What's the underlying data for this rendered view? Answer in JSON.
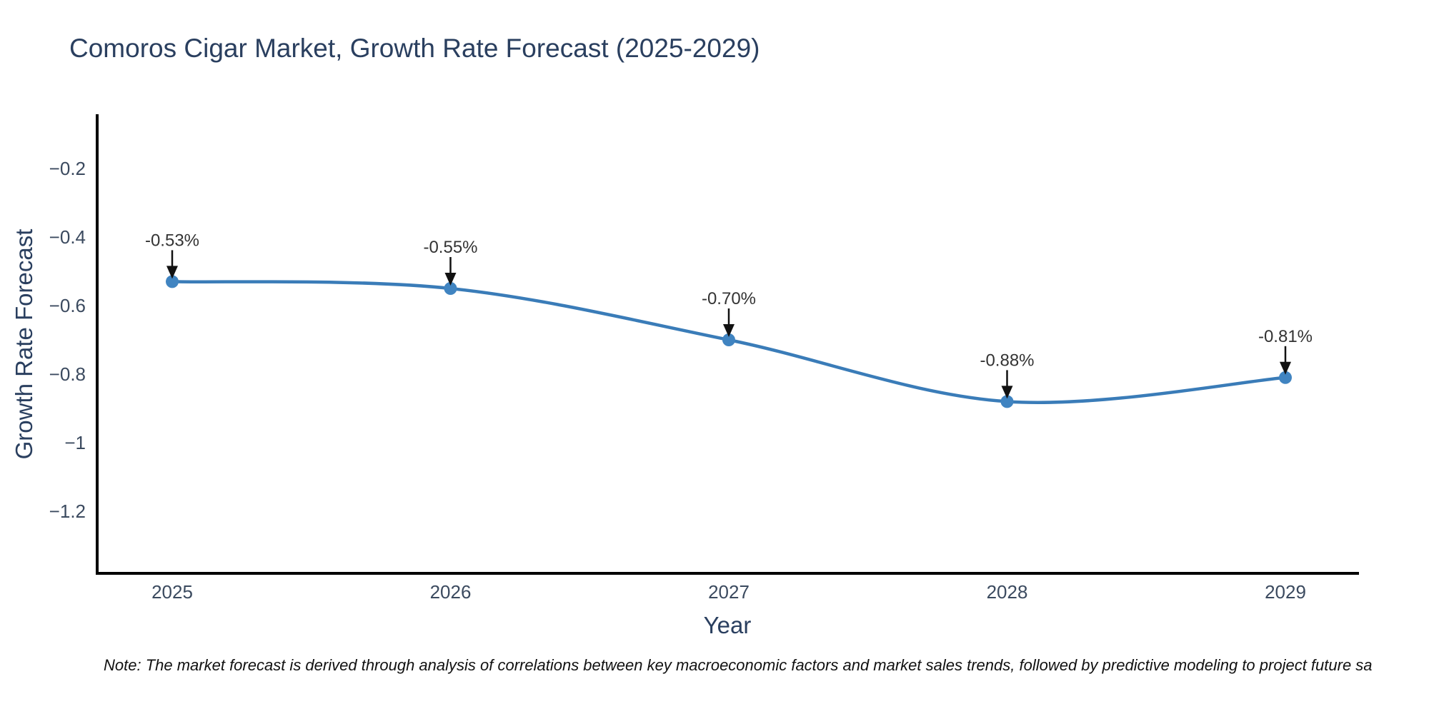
{
  "title": "Comoros Cigar Market, Growth Rate Forecast (2025-2029)",
  "note": "Note: The market forecast is derived through analysis of correlations between key macroeconomic factors and market sales trends, followed by predictive modeling to project future sa",
  "chart_data": {
    "type": "line",
    "title": "Comoros Cigar Market, Growth Rate Forecast (2025-2029)",
    "xlabel": "Year",
    "ylabel": "Growth Rate Forecast",
    "categories": [
      "2025",
      "2026",
      "2027",
      "2028",
      "2029"
    ],
    "series": [
      {
        "name": "Growth Rate Forecast",
        "values": [
          -0.53,
          -0.55,
          -0.7,
          -0.88,
          -0.81
        ]
      }
    ],
    "annotations": [
      "-0.53%",
      "-0.55%",
      "-0.70%",
      "-0.88%",
      "-0.81%"
    ],
    "y_tick_labels": [
      "−0.2",
      "−0.4",
      "−0.6",
      "−0.8",
      "−1",
      "−1.2"
    ],
    "y_tick_values": [
      -0.2,
      -0.4,
      -0.6,
      -0.8,
      -1.0,
      -1.2
    ],
    "ylim": [
      -1.38,
      -0.05
    ],
    "line_shape": "spline",
    "grid": false,
    "legend": false,
    "colors": {
      "line": "#3a7cb8",
      "marker": "#4084c1",
      "axis": "#000000",
      "arrow": "#111111",
      "title_text": "#2a3f5f",
      "axis_title_text": "#2a3f5f",
      "tick_text": "#3b4a5f",
      "annotation_text": "#333333",
      "note_text": "#111111",
      "background": "#ffffff"
    }
  }
}
